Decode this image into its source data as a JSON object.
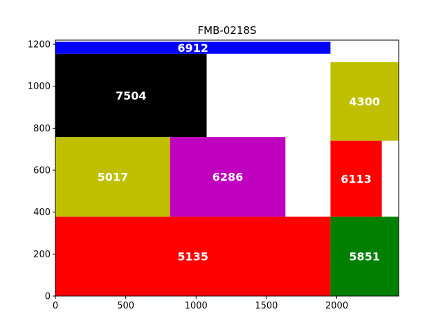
{
  "chart_data": {
    "type": "bar",
    "title": "FMB-0218S",
    "xlabel": "",
    "ylabel": "",
    "xlim": [
      0,
      2440
    ],
    "ylim": [
      0,
      1220
    ],
    "x_ticks": [
      0,
      500,
      1000,
      1500,
      2000
    ],
    "y_ticks": [
      0,
      200,
      400,
      600,
      800,
      1000,
      1200
    ],
    "grid": false,
    "rectangles": [
      {
        "label": "5135",
        "x": 0,
        "y": 0,
        "width": 1955,
        "height": 378,
        "color": "#ff0000"
      },
      {
        "label": "5851",
        "x": 1955,
        "y": 0,
        "width": 485,
        "height": 378,
        "color": "#008000"
      },
      {
        "label": "5017",
        "x": 0,
        "y": 378,
        "width": 815,
        "height": 380,
        "color": "#bfbf00"
      },
      {
        "label": "6286",
        "x": 815,
        "y": 378,
        "width": 820,
        "height": 380,
        "color": "#bf00bf"
      },
      {
        "label": "6113",
        "x": 1955,
        "y": 378,
        "width": 365,
        "height": 362,
        "color": "#ff0000"
      },
      {
        "label": "7504",
        "x": 0,
        "y": 758,
        "width": 1075,
        "height": 397,
        "color": "#000000"
      },
      {
        "label": "4300",
        "x": 1955,
        "y": 740,
        "width": 485,
        "height": 375,
        "color": "#bfbf00"
      },
      {
        "label": "6912",
        "x": 0,
        "y": 1155,
        "width": 1955,
        "height": 57,
        "color": "#0000ff"
      }
    ]
  }
}
